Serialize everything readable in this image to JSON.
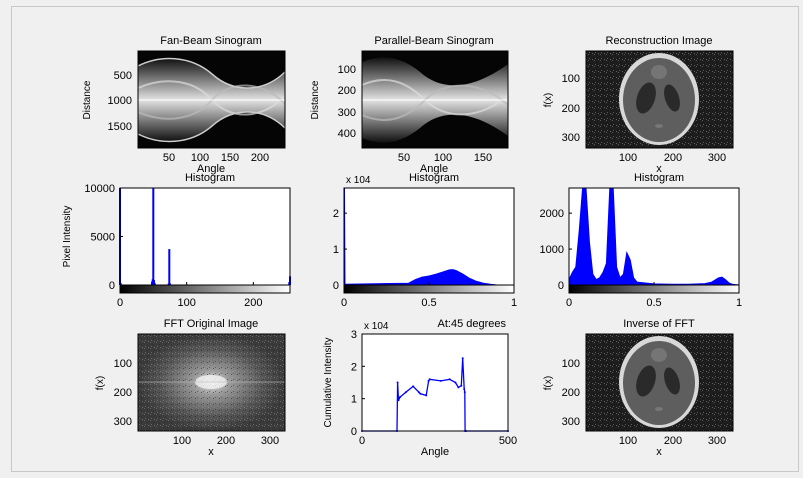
{
  "colors": {
    "background": "#f0f0f0",
    "axes_bg": "#ffffff",
    "series": "#0000ff"
  },
  "panels": [
    {
      "id": "fan-beam-sinogram",
      "title": "Fan-Beam Sinogram",
      "xlabel": "Angle",
      "ylabel": "Distance",
      "xticks": [
        "50",
        "100",
        "150",
        "200"
      ],
      "yticks": [
        "500",
        "1000",
        "1500"
      ]
    },
    {
      "id": "parallel-beam-sinogram",
      "title": "Parallel-Beam Sinogram",
      "xlabel": "Angle",
      "ylabel": "Distance",
      "xticks": [
        "50",
        "100",
        "150"
      ],
      "yticks": [
        "100",
        "200",
        "300",
        "400"
      ]
    },
    {
      "id": "reconstruction-image",
      "title": "Reconstruction Image",
      "xlabel": "x",
      "ylabel": "f(x)",
      "xticks": [
        "100",
        "200",
        "300"
      ],
      "yticks": [
        "100",
        "200",
        "300"
      ]
    },
    {
      "id": "fft-original-image",
      "title": "FFT Original Image",
      "xlabel": "x",
      "ylabel": "f(x)",
      "xticks": [
        "100",
        "200",
        "300"
      ],
      "yticks": [
        "100",
        "200",
        "300"
      ]
    },
    {
      "id": "inverse-of-fft",
      "title": "Inverse of FFT",
      "xlabel": "x",
      "ylabel": "f(x)",
      "xticks": [
        "100",
        "200",
        "300"
      ],
      "yticks": [
        "100",
        "200",
        "300"
      ]
    }
  ],
  "chart_data": [
    {
      "type": "bar",
      "title": "Histogram",
      "xlabel": "",
      "ylabel": "Pixel Intensity",
      "xlim": [
        0,
        255
      ],
      "ylim": [
        0,
        10000
      ],
      "xticks": [
        "0",
        "100",
        "200"
      ],
      "yticks": [
        "0",
        "5000",
        "10000"
      ],
      "colorbar": "grayscale",
      "x": [
        0,
        1,
        48,
        49,
        50,
        51,
        52,
        73,
        74,
        75,
        254,
        255
      ],
      "values": [
        10000,
        200,
        350,
        600,
        10000,
        500,
        200,
        150,
        3700,
        150,
        300,
        900
      ]
    },
    {
      "type": "area",
      "title": "Histogram",
      "xlabel": "",
      "ylabel": "",
      "exponent": "x 10^4",
      "xlim": [
        0,
        1
      ],
      "ylim": [
        0,
        2.7
      ],
      "xticks": [
        "0",
        "0.5",
        "1"
      ],
      "yticks": [
        "0",
        "1",
        "2"
      ],
      "colorbar": "grayscale",
      "x": [
        0,
        0.003,
        0.006,
        0.38,
        0.42,
        0.46,
        0.5,
        0.54,
        0.58,
        0.62,
        0.64,
        0.66,
        0.7,
        0.74,
        0.78,
        0.82,
        0.86,
        0.9
      ],
      "values": [
        2.7,
        2.7,
        0.02,
        0.05,
        0.15,
        0.22,
        0.25,
        0.3,
        0.36,
        0.42,
        0.43,
        0.4,
        0.3,
        0.18,
        0.1,
        0.05,
        0.02,
        0.0
      ]
    },
    {
      "type": "area",
      "title": "Histogram",
      "xlabel": "",
      "ylabel": "",
      "xlim": [
        0,
        1
      ],
      "ylim": [
        0,
        2700
      ],
      "xticks": [
        "0",
        "0.5",
        "1"
      ],
      "yticks": [
        "0",
        "1000",
        "2000"
      ],
      "colorbar": "grayscale",
      "x": [
        0,
        0.02,
        0.04,
        0.06,
        0.08,
        0.1,
        0.12,
        0.14,
        0.16,
        0.18,
        0.2,
        0.22,
        0.24,
        0.26,
        0.28,
        0.3,
        0.32,
        0.34,
        0.36,
        0.38,
        0.4,
        0.5,
        0.6,
        0.7,
        0.8,
        0.84,
        0.88,
        0.9,
        0.92,
        0.94,
        0.96,
        1.0
      ],
      "values": [
        150,
        350,
        500,
        1500,
        2700,
        2700,
        1200,
        300,
        150,
        200,
        350,
        600,
        2700,
        2700,
        500,
        200,
        300,
        900,
        700,
        200,
        80,
        30,
        20,
        20,
        40,
        80,
        200,
        220,
        150,
        60,
        20,
        0
      ]
    },
    {
      "type": "line",
      "title": "At:45 degrees",
      "xlabel": "Angle",
      "ylabel": "Cumulative Intensity",
      "exponent": "x 10^4",
      "xlim": [
        0,
        500
      ],
      "ylim": [
        0,
        3
      ],
      "xticks": [
        "0",
        "500"
      ],
      "yticks": [
        "0",
        "1",
        "2",
        "3"
      ],
      "x": [
        0,
        120,
        122,
        125,
        130,
        150,
        175,
        195,
        200,
        220,
        228,
        232,
        270,
        300,
        320,
        330,
        340,
        345,
        350,
        352,
        353,
        356,
        500
      ],
      "values": [
        0,
        0,
        1.5,
        0.95,
        1.05,
        1.2,
        1.38,
        1.2,
        1.15,
        1.1,
        1.55,
        1.6,
        1.55,
        1.6,
        1.5,
        1.35,
        1.4,
        2.25,
        1.3,
        1.2,
        0.0,
        0.0,
        0.0
      ]
    }
  ]
}
